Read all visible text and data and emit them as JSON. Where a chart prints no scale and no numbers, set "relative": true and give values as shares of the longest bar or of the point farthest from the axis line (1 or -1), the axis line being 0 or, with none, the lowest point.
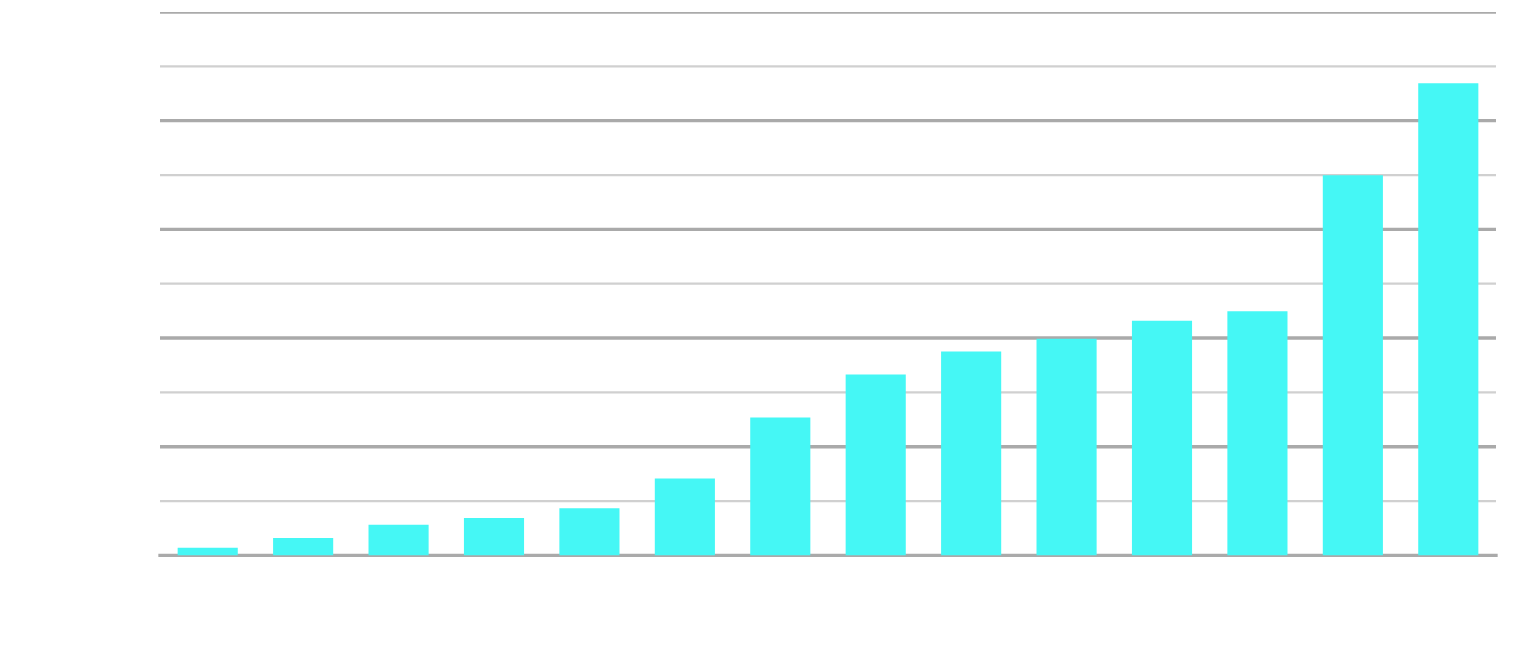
{
  "chart_data": {
    "type": "bar",
    "relative": true,
    "categories": [
      null,
      null,
      null,
      null,
      null,
      null,
      null,
      null,
      null,
      null,
      null,
      null,
      null,
      null
    ],
    "values": [
      0.016,
      0.037,
      0.065,
      0.079,
      0.1,
      0.163,
      0.292,
      0.383,
      0.432,
      0.459,
      0.497,
      0.517,
      0.805,
      1
    ],
    "color": "#45f7f5",
    "grid": "y"
  }
}
